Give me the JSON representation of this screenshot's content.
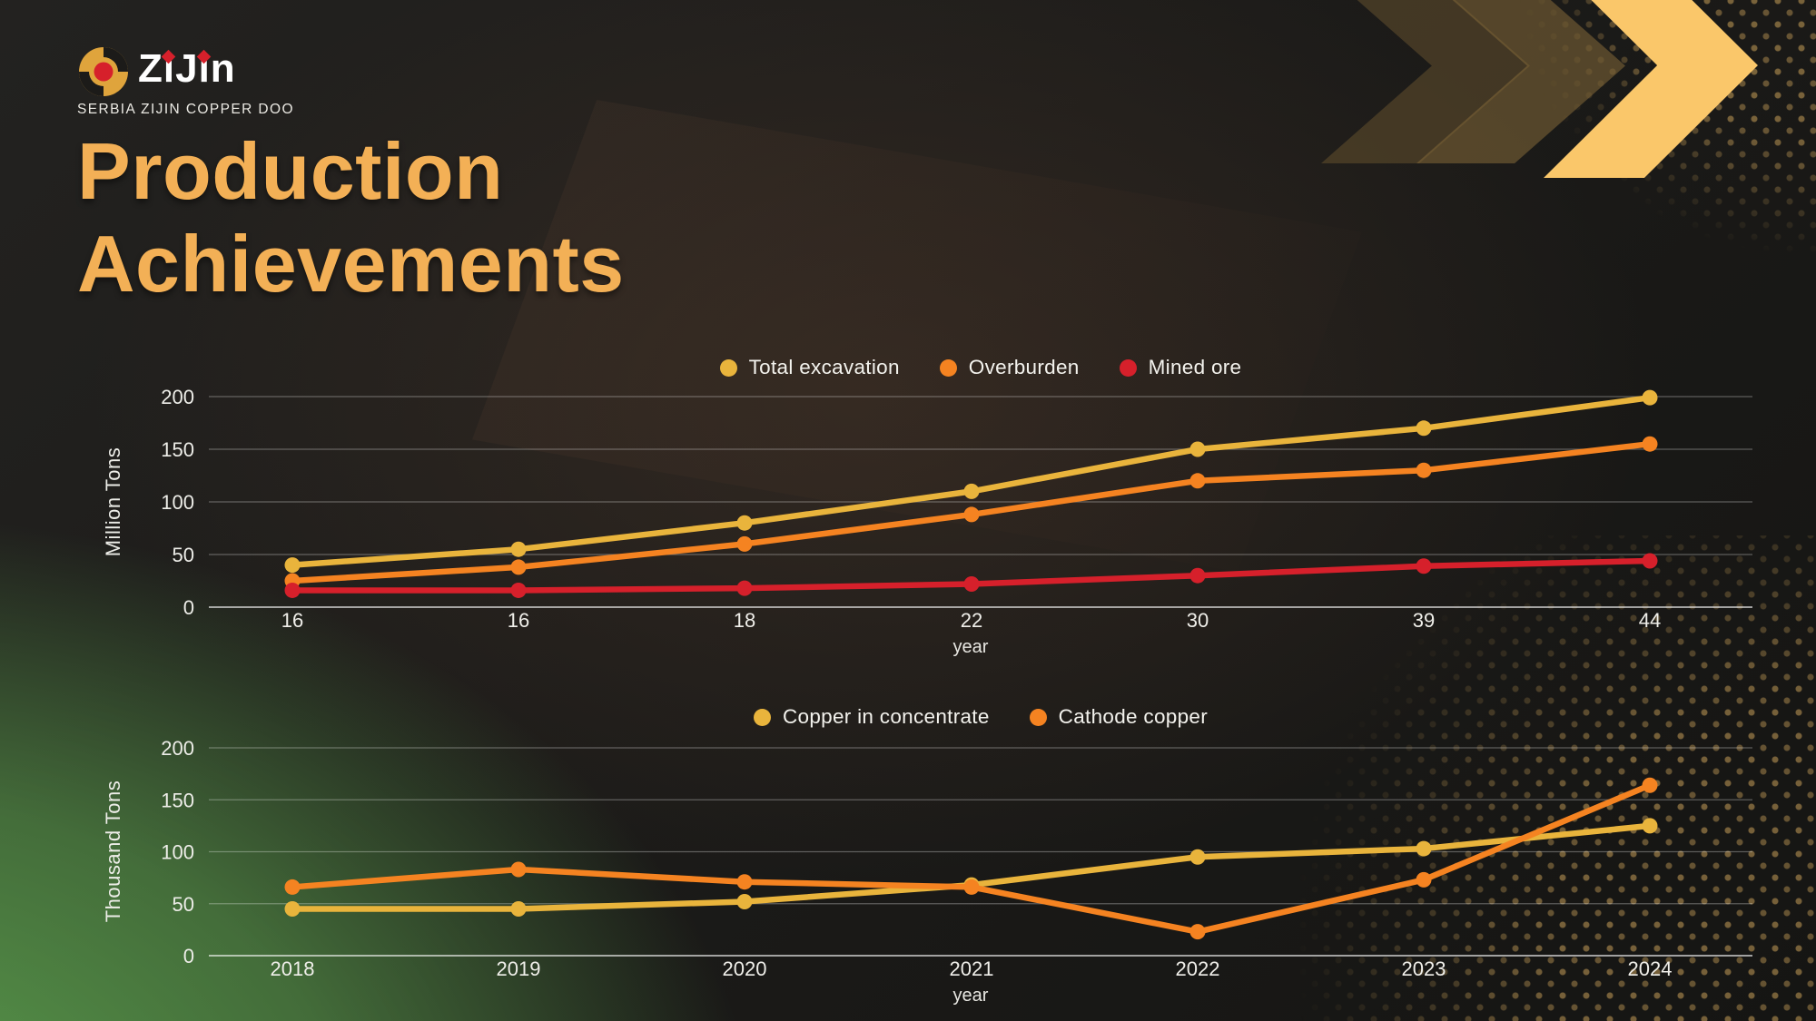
{
  "theme": {
    "accent_gold": "#F3B056",
    "chevron_bright": "#FAC76A",
    "green_corner": "#5B9E4D",
    "text_light": "#F3F2ED",
    "grid_color": "rgba(255,255,255,0.30)",
    "grid_zero_color": "rgba(255,255,255,0.60)"
  },
  "logo": {
    "brand": "ZiJin",
    "tagline": "SERBIA ZIJIN COPPER DOO",
    "mark_gold": "#DFA43C",
    "mark_red": "#D6202B"
  },
  "title": {
    "line1": "Production",
    "line2": "Achievements"
  },
  "chart_data": [
    {
      "type": "line",
      "title": "",
      "ylabel": "Million Tons",
      "xlabel": "year",
      "x_tick_labels": [
        "16",
        "16",
        "18",
        "22",
        "30",
        "39",
        "44"
      ],
      "y_ticks": [
        0,
        50,
        100,
        150,
        200
      ],
      "ylim": [
        0,
        200
      ],
      "grid": true,
      "legend_position": "top-center",
      "series": [
        {
          "name": "Total excavation",
          "color": "#E9B43C",
          "values": [
            40,
            55,
            80,
            110,
            150,
            170,
            199
          ]
        },
        {
          "name": "Overburden",
          "color": "#F58321",
          "values": [
            25,
            38,
            60,
            88,
            120,
            130,
            155
          ]
        },
        {
          "name": "Mined ore",
          "color": "#D6202B",
          "values": [
            16,
            16,
            18,
            22,
            30,
            39,
            44
          ]
        }
      ]
    },
    {
      "type": "line",
      "title": "",
      "ylabel": "Thousand Tons",
      "xlabel": "year",
      "x_tick_labels": [
        "2018",
        "2019",
        "2020",
        "2021",
        "2022",
        "2023",
        "2024"
      ],
      "y_ticks": [
        0,
        50,
        100,
        150,
        200
      ],
      "ylim": [
        0,
        200
      ],
      "grid": true,
      "legend_position": "top-center",
      "series": [
        {
          "name": "Copper in concentrate",
          "color": "#E9B43C",
          "values": [
            45,
            45,
            52,
            68,
            95,
            103,
            125
          ]
        },
        {
          "name": "Cathode copper",
          "color": "#F58321",
          "values": [
            66,
            83,
            71,
            66,
            23,
            73,
            164
          ]
        }
      ]
    }
  ]
}
